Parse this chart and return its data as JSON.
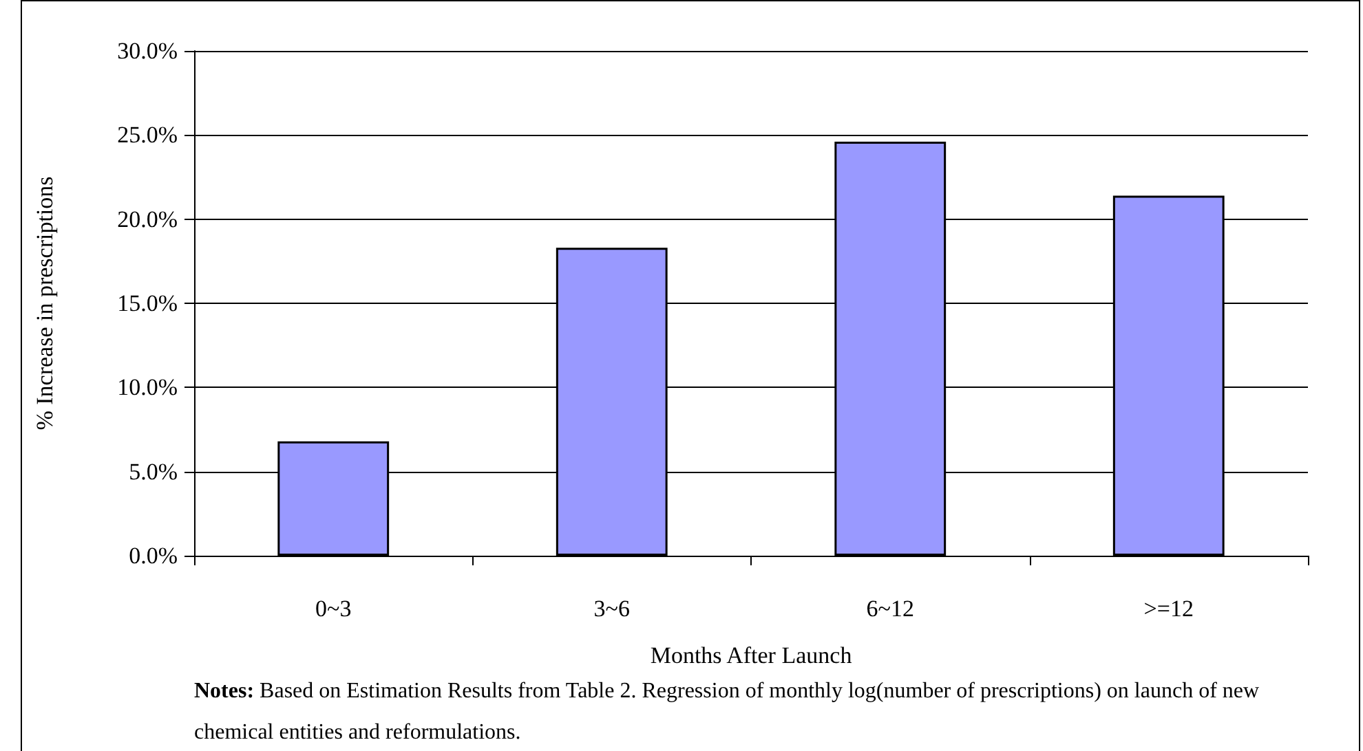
{
  "chart_data": {
    "type": "bar",
    "xlabel": "Months After Launch",
    "ylabel": "% Increase in prescriptions",
    "categories": [
      "0~3",
      "3~6",
      "6~12",
      ">=12"
    ],
    "values": [
      6.8,
      18.3,
      24.6,
      21.4
    ],
    "color": "#9999ff",
    "ylim": [
      0,
      30
    ],
    "yticks": [
      {
        "value": 0,
        "label": "0.0%"
      },
      {
        "value": 5,
        "label": "5.0%"
      },
      {
        "value": 10,
        "label": "10.0%"
      },
      {
        "value": 15,
        "label": "15.0%"
      },
      {
        "value": 20,
        "label": "20.0%"
      },
      {
        "value": 25,
        "label": "25.0%"
      },
      {
        "value": 30,
        "label": "30.0%"
      }
    ],
    "grid": "y",
    "annotations": [
      "Notes: Based on Estimation Results from Table 2. Regression of monthly log(number of prescriptions) on launch of new chemical entities and reformulations."
    ]
  }
}
